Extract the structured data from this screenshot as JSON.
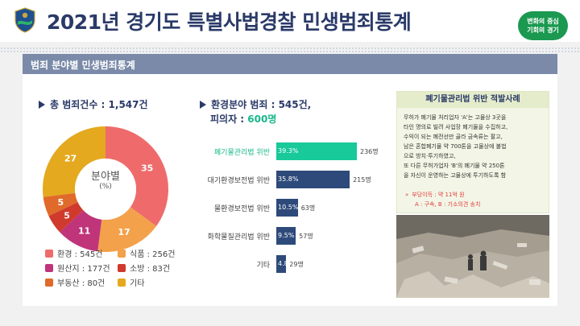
{
  "header": {
    "title": "2021년 경기도 특별사법경찰 민생범죄통계",
    "emblem_text": "경기도 특별사법경찰단",
    "slogan_line1": "변화의 중심",
    "slogan_line2": "기회의 경기"
  },
  "section": {
    "title": "범죄 분야별 민생범죄통계"
  },
  "total": {
    "text": "총 범죄건수 : 1,547건"
  },
  "env": {
    "crimes_label": "환경분야 범죄 : 545건,",
    "suspects_label": "피의자 : ",
    "suspects_value": "600명"
  },
  "donut": {
    "center_label": "분야별",
    "center_sub": "(%)"
  },
  "chart_data": [
    {
      "type": "pie",
      "categories": [
        "환경",
        "식품",
        "원산지",
        "소방",
        "부동산",
        "기타"
      ],
      "values": [
        35,
        17,
        11,
        5,
        5,
        27
      ],
      "counts": [
        "545건",
        "256건",
        "177건",
        "83건",
        "80건",
        ""
      ],
      "colors": [
        "#ef6b6b",
        "#f3a14a",
        "#c0347a",
        "#cf3a2c",
        "#e06a2a",
        "#e4a91f"
      ],
      "legend": [
        {
          "label": "환경 : 545건",
          "color": "#ef6b6b"
        },
        {
          "label": "식품 : 256건",
          "color": "#f3a14a"
        },
        {
          "label": "원산지 : 177건",
          "color": "#c0347a"
        },
        {
          "label": "소방 : 83건",
          "color": "#cf3a2c"
        },
        {
          "label": "부동산 : 80건",
          "color": "#e06a2a"
        },
        {
          "label": "기타",
          "color": "#e4a91f"
        }
      ]
    },
    {
      "type": "bar",
      "orientation": "horizontal",
      "categories": [
        "폐기물관리법 위반",
        "대기환경보전법 위반",
        "물환경보전법 위반",
        "화학물질관리법 위반",
        "기타"
      ],
      "values": [
        236,
        215,
        63,
        57,
        29
      ],
      "value_labels": [
        "236명",
        "215명",
        "63명",
        "57명",
        "29명"
      ],
      "percent_labels": [
        "39.3%",
        "35.8%",
        "10.5%",
        "9.5%",
        "4.8%"
      ],
      "highlight_index": 0,
      "colors": {
        "highlight": "#18c99a",
        "default": "#2d4a7a"
      }
    }
  ],
  "case": {
    "title": "폐기물관리법 위반 적발사례",
    "lines": [
      "무허가 폐기물 처리업자 'A'는 고물상 3곳을",
      "타인 명의로 빌려 사업장 폐기물을 수집하고,",
      "수익이 되는 폐전선만 골라 금속류는 팔고,",
      "남은 혼합폐기물 약 700톤을 고물상에 불법",
      "으로 방치·투기하였고,",
      "또 다른 무허가업자 'B'의 폐기물 약 250톤",
      "을 자신이 운영하는 고물상에 투기하도록 함"
    ],
    "profit": "부당이득 : 약 11억 원",
    "result": "A : 구속, B : 기소의견 송치"
  }
}
